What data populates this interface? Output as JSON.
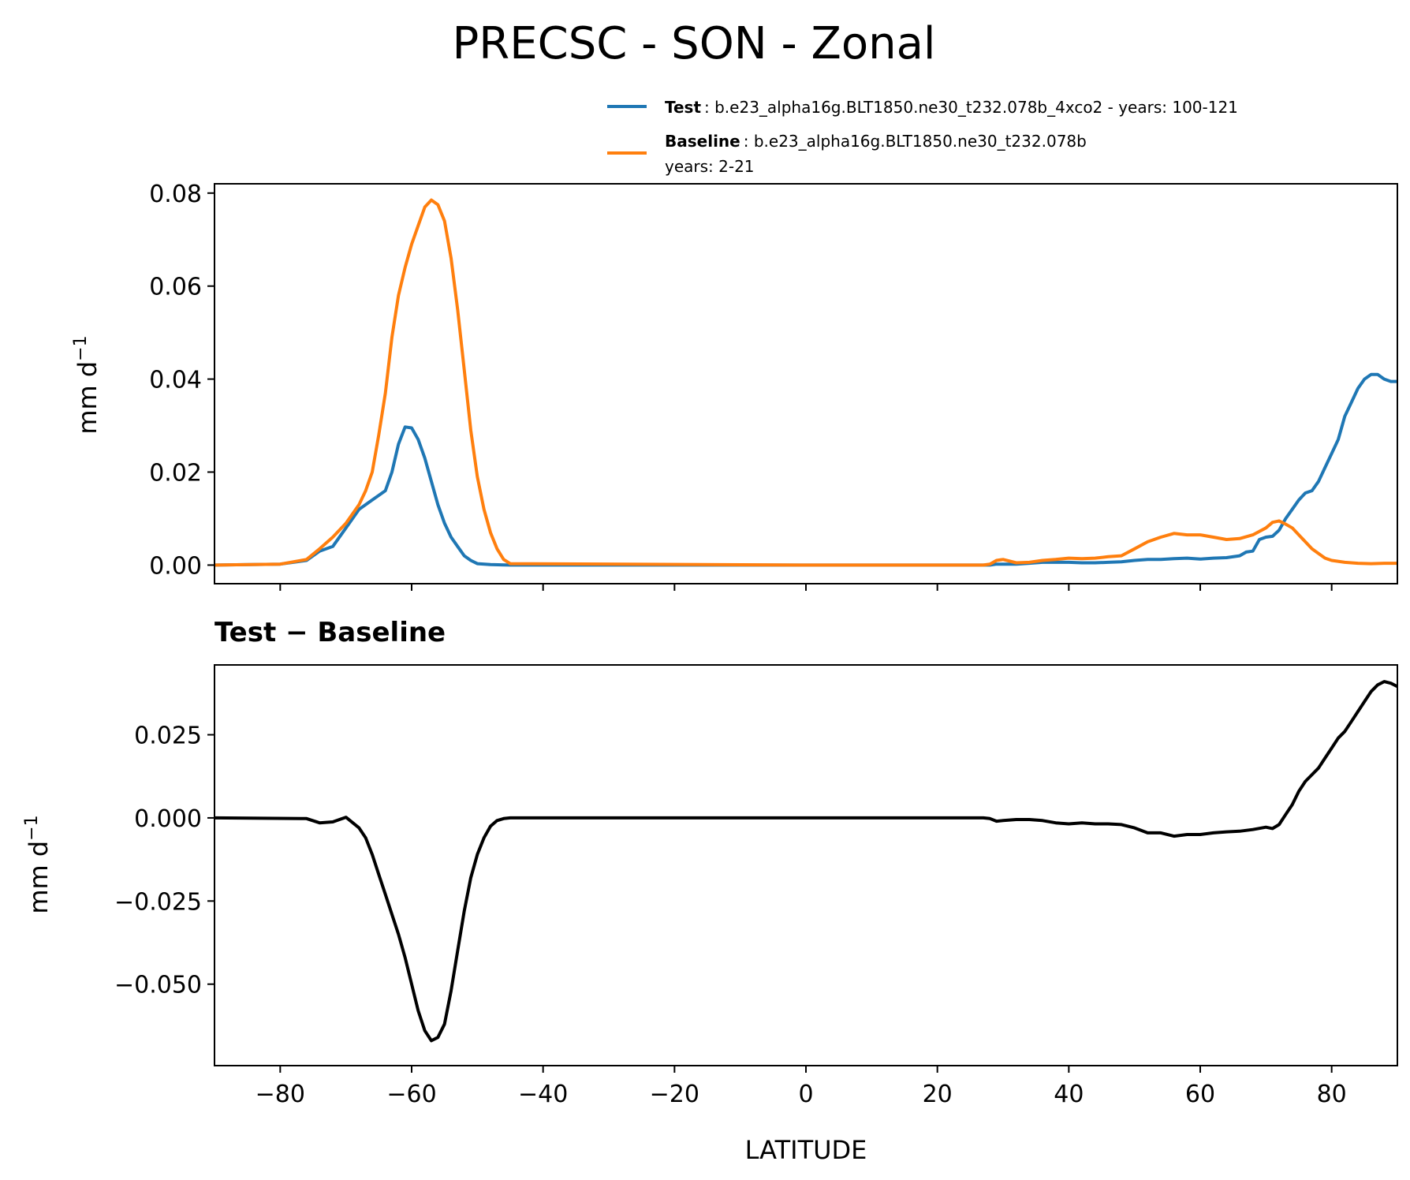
{
  "chart_data": [
    {
      "type": "line",
      "title": "PRECSC - SON - Zonal",
      "xlabel": "",
      "ylabel": "mm d",
      "ylabel_sup": "−1",
      "xlim": [
        -90,
        90
      ],
      "ylim": [
        -0.004,
        0.082
      ],
      "yticks": [
        0.0,
        0.02,
        0.04,
        0.06,
        0.08
      ],
      "ytick_labels": [
        "0.00",
        "0.02",
        "0.04",
        "0.06",
        "0.08"
      ],
      "xticks": [
        -80,
        -60,
        -40,
        -20,
        0,
        20,
        40,
        60,
        80
      ],
      "legend": [
        {
          "name_bold": "Test",
          "text": ": b.e23_alpha16g.BLT1850.ne30_t232.078b_4xco2 - years: 100-121",
          "color": "#1f77b4"
        },
        {
          "name_bold": "Baseline",
          "text": ": b.e23_alpha16g.BLT1850.ne30_t232.078b",
          "text2": "years: 2-21",
          "color": "#ff7f0e"
        }
      ],
      "legend_position": "above plot, right",
      "series": [
        {
          "name": "Test",
          "color": "#1f77b4",
          "x": [
            -90,
            -80,
            -76,
            -74,
            -72,
            -70,
            -68,
            -66,
            -64,
            -63,
            -62,
            -61,
            -60,
            -59,
            -58,
            -57,
            -56,
            -55,
            -54,
            -53,
            -52,
            -51,
            -50,
            -48,
            -45,
            0,
            28,
            29,
            30,
            32,
            34,
            36,
            38,
            40,
            42,
            44,
            46,
            48,
            50,
            52,
            54,
            56,
            58,
            60,
            62,
            64,
            66,
            67,
            68,
            69,
            70,
            71,
            72,
            73,
            74,
            75,
            76,
            77,
            78,
            79,
            80,
            81,
            82,
            83,
            84,
            85,
            86,
            87,
            88,
            89,
            90
          ],
          "y": [
            0.0,
            0.0002,
            0.001,
            0.003,
            0.004,
            0.008,
            0.012,
            0.014,
            0.016,
            0.02,
            0.026,
            0.0297,
            0.0295,
            0.027,
            0.023,
            0.018,
            0.013,
            0.009,
            0.006,
            0.004,
            0.002,
            0.001,
            0.0003,
            0.0001,
            0.0,
            0.0,
            0.0,
            0.0002,
            0.0002,
            0.0002,
            0.0004,
            0.0006,
            0.0006,
            0.0006,
            0.0005,
            0.0005,
            0.0006,
            0.0007,
            0.001,
            0.0012,
            0.0012,
            0.0014,
            0.0015,
            0.0013,
            0.0015,
            0.0016,
            0.002,
            0.0028,
            0.003,
            0.0055,
            0.006,
            0.0062,
            0.0075,
            0.01,
            0.012,
            0.014,
            0.0155,
            0.016,
            0.018,
            0.021,
            0.024,
            0.027,
            0.032,
            0.035,
            0.038,
            0.04,
            0.041,
            0.041,
            0.04,
            0.0395,
            0.0395
          ]
        },
        {
          "name": "Baseline",
          "color": "#ff7f0e",
          "x": [
            -90,
            -80,
            -76,
            -74,
            -72,
            -70,
            -68,
            -67,
            -66,
            -65,
            -64,
            -63,
            -62,
            -61,
            -60,
            -59,
            -58,
            -57,
            -56,
            -55,
            -54,
            -53,
            -52,
            -51,
            -50,
            -49,
            -48,
            -47,
            -46,
            -45,
            0,
            27,
            28,
            29,
            30,
            32,
            34,
            36,
            38,
            40,
            42,
            44,
            46,
            48,
            50,
            52,
            54,
            56,
            58,
            60,
            62,
            64,
            66,
            68,
            70,
            71,
            72,
            73,
            74,
            75,
            76,
            77,
            78,
            79,
            80,
            82,
            84,
            86,
            88,
            90
          ],
          "y": [
            0.0,
            0.0002,
            0.0012,
            0.0035,
            0.006,
            0.009,
            0.013,
            0.016,
            0.02,
            0.028,
            0.037,
            0.049,
            0.058,
            0.064,
            0.069,
            0.073,
            0.077,
            0.0785,
            0.0775,
            0.074,
            0.066,
            0.055,
            0.042,
            0.029,
            0.019,
            0.012,
            0.007,
            0.0035,
            0.0012,
            0.0003,
            0.0,
            0.0,
            0.0002,
            0.001,
            0.0012,
            0.0005,
            0.0006,
            0.001,
            0.0012,
            0.0015,
            0.0014,
            0.0015,
            0.0018,
            0.002,
            0.0035,
            0.005,
            0.006,
            0.0068,
            0.0065,
            0.0065,
            0.006,
            0.0055,
            0.0057,
            0.0065,
            0.008,
            0.0092,
            0.0095,
            0.0088,
            0.008,
            0.0065,
            0.005,
            0.0035,
            0.0025,
            0.0015,
            0.001,
            0.0006,
            0.0004,
            0.0003,
            0.0004,
            0.0004
          ]
        }
      ]
    },
    {
      "type": "line",
      "title": "Test − Baseline",
      "xlabel": "LATITUDE",
      "ylabel": "mm d",
      "ylabel_sup": "−1",
      "xlim": [
        -90,
        90
      ],
      "ylim": [
        -0.0745,
        0.046
      ],
      "yticks": [
        0.025,
        0.0,
        -0.025,
        -0.05
      ],
      "ytick_labels": [
        "0.025",
        "0.000",
        "−0.025",
        "−0.050"
      ],
      "xticks": [
        -80,
        -60,
        -40,
        -20,
        0,
        20,
        40,
        60,
        80
      ],
      "xtick_labels": [
        "−80",
        "−60",
        "−40",
        "−20",
        "0",
        "20",
        "40",
        "60",
        "80"
      ],
      "series": [
        {
          "color": "#000000",
          "x": [
            -90,
            -76,
            -74,
            -72,
            -70,
            -68,
            -67,
            -66,
            -65,
            -64,
            -63,
            -62,
            -61,
            -60,
            -59,
            -58,
            -57,
            -56,
            -55,
            -54,
            -53,
            -52,
            -51,
            -50,
            -49,
            -48,
            -47,
            -46,
            -45,
            0,
            27,
            28,
            29,
            30,
            32,
            34,
            36,
            38,
            40,
            42,
            44,
            46,
            48,
            50,
            52,
            54,
            56,
            58,
            60,
            62,
            64,
            66,
            68,
            70,
            71,
            72,
            73,
            74,
            75,
            76,
            77,
            78,
            79,
            80,
            81,
            82,
            83,
            84,
            85,
            86,
            87,
            88,
            89,
            90
          ],
          "y": [
            0.0,
            -0.0002,
            -0.0015,
            -0.0012,
            0.0002,
            -0.003,
            -0.006,
            -0.011,
            -0.017,
            -0.023,
            -0.029,
            -0.035,
            -0.042,
            -0.05,
            -0.058,
            -0.064,
            -0.067,
            -0.066,
            -0.062,
            -0.052,
            -0.04,
            -0.028,
            -0.018,
            -0.011,
            -0.006,
            -0.0025,
            -0.0008,
            -0.0002,
            0.0,
            0.0,
            0.0,
            -0.0002,
            -0.001,
            -0.0008,
            -0.0005,
            -0.0005,
            -0.0008,
            -0.0015,
            -0.0018,
            -0.0015,
            -0.0018,
            -0.0018,
            -0.002,
            -0.003,
            -0.0045,
            -0.0045,
            -0.0055,
            -0.005,
            -0.005,
            -0.0045,
            -0.0042,
            -0.004,
            -0.0035,
            -0.0028,
            -0.0032,
            -0.002,
            0.001,
            0.004,
            0.008,
            0.011,
            0.013,
            0.015,
            0.018,
            0.021,
            0.024,
            0.026,
            0.029,
            0.032,
            0.035,
            0.038,
            0.04,
            0.041,
            0.0405,
            0.0395
          ]
        }
      ]
    }
  ]
}
